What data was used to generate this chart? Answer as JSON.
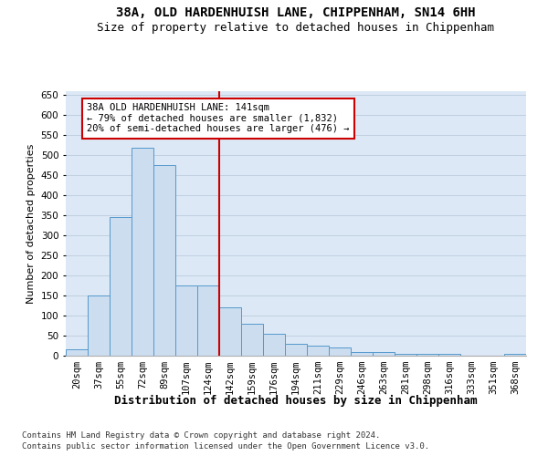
{
  "title_line1": "38A, OLD HARDENHUISH LANE, CHIPPENHAM, SN14 6HH",
  "title_line2": "Size of property relative to detached houses in Chippenham",
  "xlabel": "Distribution of detached houses by size in Chippenham",
  "ylabel": "Number of detached properties",
  "categories": [
    "20sqm",
    "37sqm",
    "55sqm",
    "72sqm",
    "89sqm",
    "107sqm",
    "124sqm",
    "142sqm",
    "159sqm",
    "176sqm",
    "194sqm",
    "211sqm",
    "229sqm",
    "246sqm",
    "263sqm",
    "281sqm",
    "298sqm",
    "316sqm",
    "333sqm",
    "351sqm",
    "368sqm"
  ],
  "values": [
    15,
    150,
    345,
    520,
    475,
    175,
    175,
    120,
    80,
    55,
    30,
    25,
    20,
    10,
    10,
    5,
    5,
    5,
    0,
    0,
    5
  ],
  "bar_color": "#ccddf0",
  "bar_edge_color": "#5599cc",
  "vline_x_index": 7,
  "vline_color": "#cc0000",
  "annotation_text": "38A OLD HARDENHUISH LANE: 141sqm\n← 79% of detached houses are smaller (1,832)\n20% of semi-detached houses are larger (476) →",
  "annotation_box_facecolor": "#ffffff",
  "annotation_box_edgecolor": "#cc0000",
  "ylim": [
    0,
    660
  ],
  "yticks": [
    0,
    50,
    100,
    150,
    200,
    250,
    300,
    350,
    400,
    450,
    500,
    550,
    600,
    650
  ],
  "grid_color": "#c0d0e0",
  "plot_bg_color": "#dce8f5",
  "footer_line1": "Contains HM Land Registry data © Crown copyright and database right 2024.",
  "footer_line2": "Contains public sector information licensed under the Open Government Licence v3.0.",
  "title_fontsize": 10,
  "subtitle_fontsize": 9,
  "annot_fontsize": 7.5,
  "tick_fontsize": 7.5,
  "xlabel_fontsize": 9,
  "ylabel_fontsize": 8,
  "footer_fontsize": 6.5
}
